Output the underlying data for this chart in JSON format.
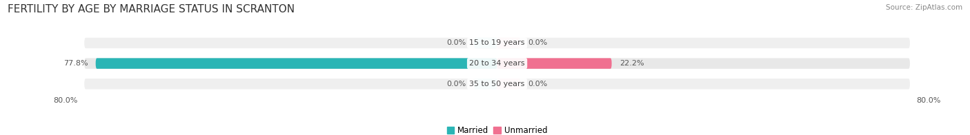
{
  "title": "FERTILITY BY AGE BY MARRIAGE STATUS IN SCRANTON",
  "source": "Source: ZipAtlas.com",
  "rows": [
    {
      "label": "15 to 19 years",
      "married": 0.0,
      "unmarried": 0.0
    },
    {
      "label": "20 to 34 years",
      "married": 77.8,
      "unmarried": 22.2
    },
    {
      "label": "35 to 50 years",
      "married": 0.0,
      "unmarried": 0.0
    }
  ],
  "max_val": 80.0,
  "married_color": "#2ab5b5",
  "unmarried_color": "#f07090",
  "married_color_light": "#a8dede",
  "unmarried_color_light": "#f5b8c8",
  "row_bg_colors": [
    "#efefef",
    "#e8e8e8",
    "#efefef"
  ],
  "bar_height": 0.52,
  "title_fontsize": 11,
  "label_fontsize": 8,
  "value_fontsize": 8,
  "source_fontsize": 7.5,
  "legend_fontsize": 8.5,
  "axis_label_fontsize": 8,
  "left_label": "80.0%",
  "right_label": "80.0%",
  "stub_size": 4.5
}
